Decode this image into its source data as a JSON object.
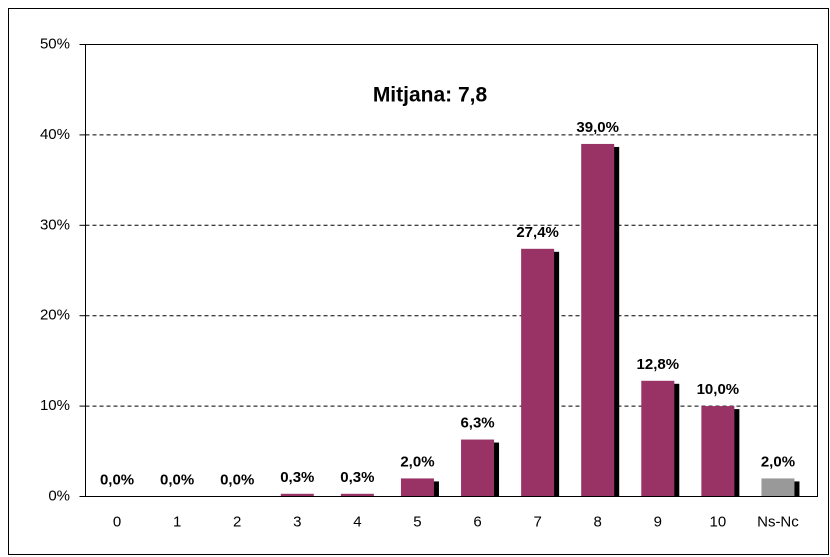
{
  "chart_data": {
    "type": "bar",
    "title": "Mitjana: 7,8",
    "categories": [
      "0",
      "1",
      "2",
      "3",
      "4",
      "5",
      "6",
      "7",
      "8",
      "9",
      "10",
      "Ns-Nc"
    ],
    "values": [
      0,
      0,
      0,
      0.3,
      0.3,
      2.0,
      6.3,
      27.4,
      39.0,
      12.8,
      10.0,
      2.0
    ],
    "value_labels": [
      "0,0%",
      "0,0%",
      "0,0%",
      "0,3%",
      "0,3%",
      "2,0%",
      "6,3%",
      "27,4%",
      "39,0%",
      "12,8%",
      "10,0%",
      "2,0%"
    ],
    "colors": [
      "#993366",
      "#993366",
      "#993366",
      "#993366",
      "#993366",
      "#993366",
      "#993366",
      "#993366",
      "#993366",
      "#993366",
      "#993366",
      "#999999"
    ],
    "ylim": [
      0,
      50
    ],
    "yticks": [
      {
        "value": 0,
        "label": "0%"
      },
      {
        "value": 10,
        "label": "10%"
      },
      {
        "value": 20,
        "label": "20%"
      },
      {
        "value": 30,
        "label": "30%"
      },
      {
        "value": 40,
        "label": "40%"
      },
      {
        "value": 50,
        "label": "50%"
      }
    ],
    "grid": true
  }
}
